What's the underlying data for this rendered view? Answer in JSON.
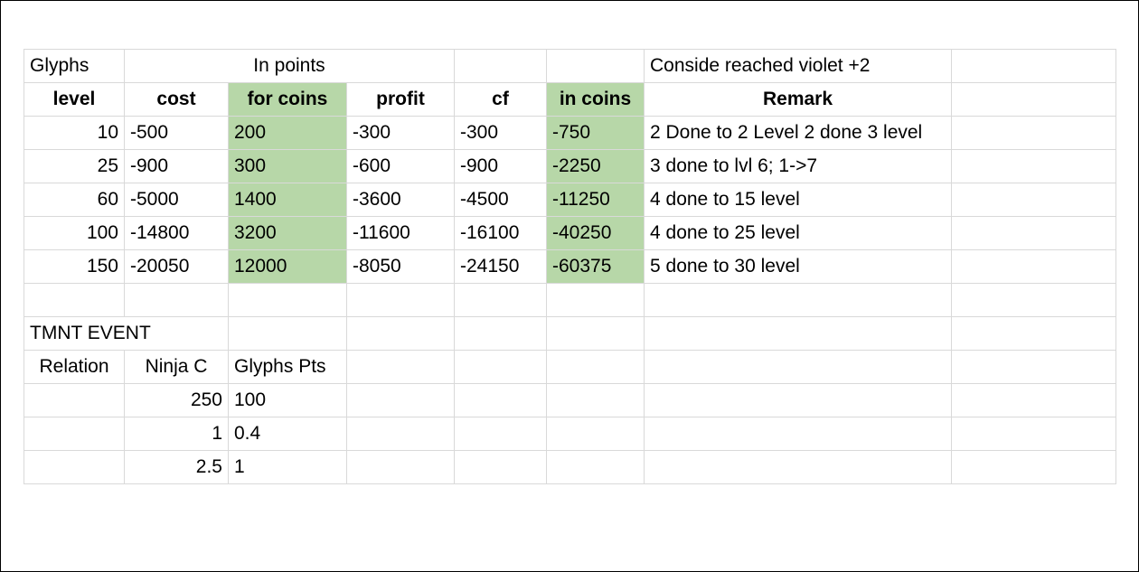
{
  "header1": {
    "glyphs": "Glyphs",
    "in_points": "In points",
    "note": "Conside reached violet +2"
  },
  "columns": {
    "level": "level",
    "cost": "cost",
    "for_coins": "for coins",
    "profit": "profit",
    "cf": "cf",
    "in_coins": "in coins",
    "remark": "Remark"
  },
  "rows": [
    {
      "level": "10",
      "cost": "-500",
      "for_coins": "200",
      "profit": "-300",
      "cf": "-300",
      "in_coins": "-750",
      "remark": "2 Done to 2 Level 2 done 3 level"
    },
    {
      "level": "25",
      "cost": "-900",
      "for_coins": "300",
      "profit": "-600",
      "cf": "-900",
      "in_coins": "-2250",
      "remark": "3 done to lvl 6; 1->7"
    },
    {
      "level": "60",
      "cost": "-5000",
      "for_coins": "1400",
      "profit": "-3600",
      "cf": "-4500",
      "in_coins": "-11250",
      "remark": "4 done to 15 level"
    },
    {
      "level": "100",
      "cost": "-14800",
      "for_coins": "3200",
      "profit": "-11600",
      "cf": "-16100",
      "in_coins": "-40250",
      "remark": "4 done to 25 level"
    },
    {
      "level": "150",
      "cost": "-20050",
      "for_coins": "12000",
      "profit": "-8050",
      "cf": "-24150",
      "in_coins": "-60375",
      "remark": "5 done to 30 level"
    }
  ],
  "event": {
    "title": "TMNT EVENT",
    "headers": {
      "relation": "Relation",
      "ninja": "Ninja C",
      "glyphs_pts": "Glyphs Pts"
    },
    "rows": [
      {
        "ninja": "250",
        "glyphs_pts": "100"
      },
      {
        "ninja": "1",
        "glyphs_pts": "0.4"
      },
      {
        "ninja": "2.5",
        "glyphs_pts": "1"
      }
    ]
  },
  "colors": {
    "highlight": "#b7d7a8",
    "gridline": "#d9d9d9"
  }
}
